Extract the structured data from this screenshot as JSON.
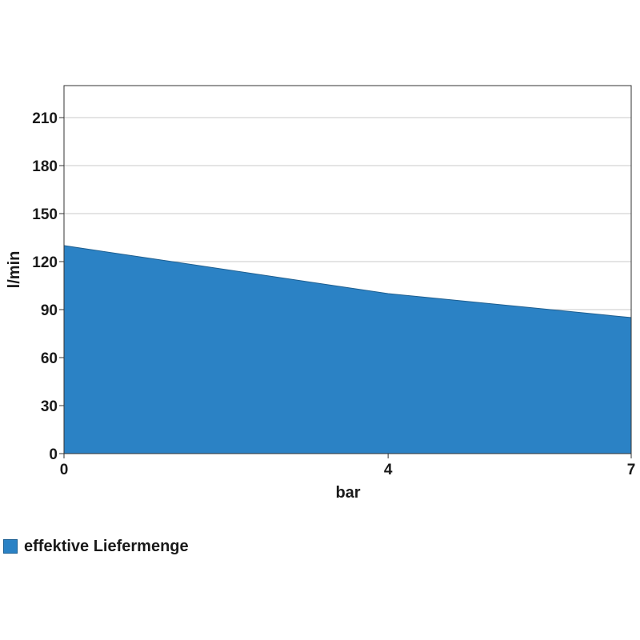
{
  "chart_data": {
    "type": "area",
    "xlabel": "bar",
    "ylabel": "l/min",
    "xlim": [
      0,
      7
    ],
    "ylim": [
      0,
      230
    ],
    "x_ticks": [
      0,
      4,
      7
    ],
    "y_ticks": [
      0,
      30,
      60,
      90,
      120,
      150,
      180,
      210
    ],
    "grid": true,
    "legend_position": "bottom-left",
    "series": [
      {
        "name": "effektive Liefermenge",
        "color": "#2b82c5",
        "x": [
          0,
          4,
          7
        ],
        "y": [
          130,
          100,
          85
        ]
      }
    ]
  }
}
